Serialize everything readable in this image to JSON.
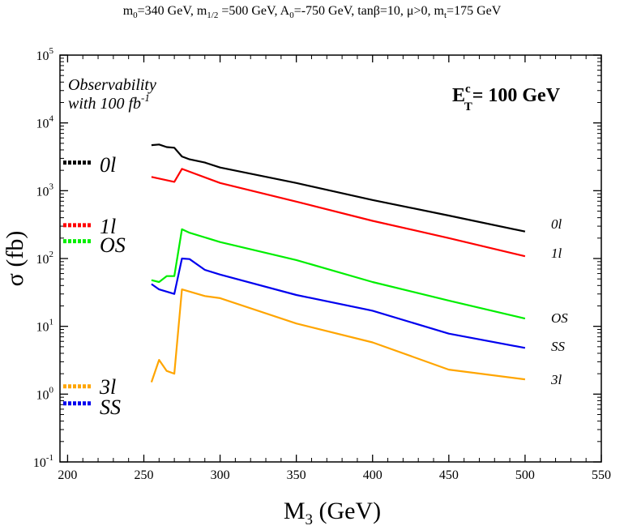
{
  "chart_data": {
    "type": "line",
    "title": "m0=340 GeV,  m1/2 =500 GeV, A0=-750 GeV, tanβ=10, μ>0, mt=175 GeV",
    "title_parts": {
      "m0_sym": "m",
      "m0_sub": "0",
      "m0_val": "=340 GeV,  ",
      "mhalf_sym": "m",
      "mhalf_sub": "1/2",
      "mhalf_val": " =500 GeV, ",
      "a0_sym": "A",
      "a0_sub": "0",
      "a0_val": "=-750 GeV, ",
      "tanb": "tanβ=10, ",
      "mu": "μ>0, ",
      "mt_sym": "m",
      "mt_sub": "t",
      "mt_val": "=175 GeV"
    },
    "xlabel": "M",
    "xlabel_sub": "3",
    "xlabel_unit": " (GeV)",
    "ylabel": "σ (fb)",
    "xlim": [
      195,
      550
    ],
    "ylim_log10": [
      -1,
      5
    ],
    "y_scale": "log",
    "x_ticks": [
      200,
      250,
      300,
      350,
      400,
      450,
      500,
      550
    ],
    "x_tick_labels": [
      "200",
      "250",
      "300",
      "350",
      "400",
      "450",
      "500",
      "550"
    ],
    "y_ticks": [
      {
        "exp": -1,
        "base": "10",
        "sup": "-1"
      },
      {
        "exp": 0,
        "base": "10",
        "sup": "0"
      },
      {
        "exp": 1,
        "base": "10",
        "sup": "1"
      },
      {
        "exp": 2,
        "base": "10",
        "sup": "2"
      },
      {
        "exp": 3,
        "base": "10",
        "sup": "3"
      },
      {
        "exp": 4,
        "base": "10",
        "sup": "4"
      },
      {
        "exp": 5,
        "base": "10",
        "sup": "5"
      }
    ],
    "annotation_observability_line1": "Observability",
    "annotation_observability_line2": "with 100 fb",
    "annotation_observability_sup": "-1",
    "annotation_cut_E": "E",
    "annotation_cut_sup": "c",
    "annotation_cut_sub": "T",
    "annotation_cut_value": "= 100 GeV",
    "series": [
      {
        "name": "0l",
        "color": "#000000",
        "x": [
          255,
          260,
          265,
          270,
          275,
          280,
          290,
          300,
          350,
          400,
          450,
          500
        ],
        "y": [
          4700,
          4800,
          4400,
          4300,
          3200,
          2900,
          2600,
          2200,
          1300,
          730,
          430,
          250
        ],
        "threshold": 2600
      },
      {
        "name": "1l",
        "color": "#ff0000",
        "x": [
          255,
          270,
          275,
          300,
          350,
          400,
          450,
          500
        ],
        "y": [
          1600,
          1350,
          2100,
          1300,
          690,
          360,
          200,
          108
        ],
        "threshold": 310
      },
      {
        "name": "OS",
        "color": "#00ee00",
        "x": [
          255,
          260,
          265,
          270,
          275,
          280,
          300,
          350,
          400,
          450,
          500
        ],
        "y": [
          48,
          45,
          55,
          55,
          270,
          240,
          175,
          95,
          45,
          24,
          13
        ],
        "threshold": 180
      },
      {
        "name": "SS",
        "color": "#0000ee",
        "x": [
          255,
          260,
          270,
          275,
          280,
          290,
          300,
          350,
          400,
          450,
          500
        ],
        "y": [
          42,
          35,
          30,
          100,
          98,
          68,
          58,
          29,
          17,
          7.8,
          4.8
        ],
        "threshold": 0.73
      },
      {
        "name": "3l",
        "color": "#ffa500",
        "x": [
          255,
          260,
          265,
          270,
          275,
          290,
          300,
          350,
          400,
          450,
          500
        ],
        "y": [
          1.5,
          3.2,
          2.2,
          2.0,
          35,
          28,
          26,
          11,
          5.8,
          2.3,
          1.65
        ],
        "threshold": 1.3
      }
    ],
    "left_labels": [
      "0l",
      "1l",
      "OS",
      "3l",
      "SS"
    ],
    "right_labels": [
      "0l",
      "1l",
      "OS",
      "SS",
      "3l"
    ]
  }
}
